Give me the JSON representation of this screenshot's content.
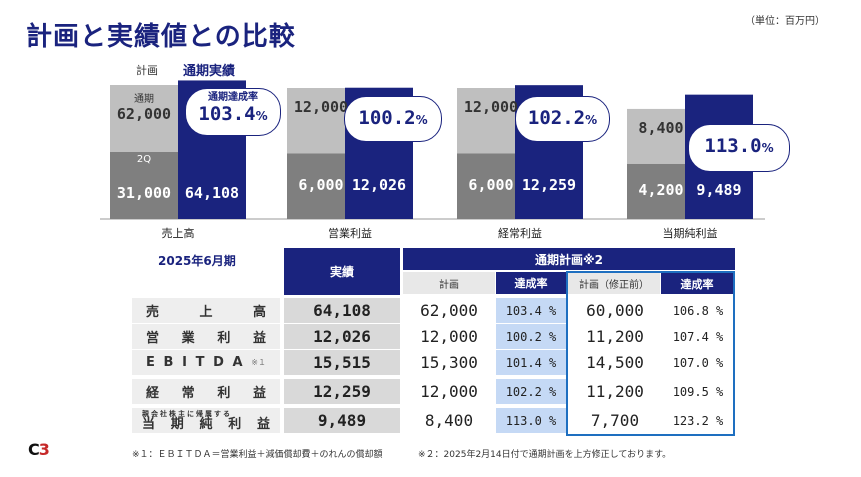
{
  "title": "計画と実績値との比較",
  "unit": "（単位：百万円）",
  "legend": {
    "plan": "計画",
    "actual": "通期実績"
  },
  "chart_data": {
    "type": "bar",
    "categories": [
      "売上高",
      "営業利益",
      "経常利益",
      "当期純利益"
    ],
    "series": [
      {
        "name": "計画",
        "h1": [
          31000,
          6000,
          6000,
          4200
        ],
        "full": [
          62000,
          12000,
          12000,
          8400
        ]
      },
      {
        "name": "通期実績",
        "values": [
          64108,
          12026,
          12259,
          9489
        ]
      }
    ],
    "labels": {
      "h1_text": [
        "31,000",
        "6,000",
        "6,000",
        "4,200"
      ],
      "full_text": [
        "62,000",
        "12,000",
        "12,000",
        "8,400"
      ],
      "actual_text": [
        "64,108",
        "12,026",
        "12,259",
        "9,489"
      ],
      "rates": [
        "103.4",
        "100.2",
        "102.2",
        "113.0"
      ],
      "pct_sign": "%",
      "h1_tag": "2Q",
      "full_tag": "通期",
      "rate_caption": "通期達成率"
    }
  },
  "table": {
    "period": "2025年6月期",
    "headers": {
      "actual": "実績",
      "plan_group": "通期計画※2",
      "plan": "計画",
      "rate": "達成率",
      "plan_before": "計画（修正前）",
      "rate2": "達成率"
    },
    "rows": [
      {
        "label_chars": [
          "売",
          "上",
          "高"
        ],
        "actual": "64,108",
        "plan": "62,000",
        "rate": "103.4 %",
        "plan_before": "60,000",
        "rate2": "106.8 %"
      },
      {
        "label_chars": [
          "営",
          "業",
          "利",
          "益"
        ],
        "actual": "12,026",
        "plan": "12,000",
        "rate": "100.2 %",
        "plan_before": "11,200",
        "rate2": "107.4 %"
      },
      {
        "label_chars": [
          "E",
          "B",
          "I",
          "T",
          "D",
          "A",
          "※１"
        ],
        "actual": "15,515",
        "plan": "15,300",
        "rate": "101.4 %",
        "plan_before": "14,500",
        "rate2": "107.0 %"
      },
      {
        "label_chars": [
          "経",
          "常",
          "利",
          "益"
        ],
        "actual": "12,259",
        "plan": "12,000",
        "rate": "102.2 %",
        "plan_before": "11,200",
        "rate2": "109.5 %"
      },
      {
        "label_top": "親会社株主に帰属する",
        "label_chars": [
          "当",
          "期",
          "純",
          "利",
          "益"
        ],
        "actual": "9,489",
        "plan": "8,400",
        "rate": "113.0 %",
        "plan_before": "7,700",
        "rate2": "123.2 %"
      }
    ]
  },
  "notes": {
    "n1": "※１：ＥＢＩＴＤＡ＝営業利益＋減価償却費＋のれんの償却額",
    "n2": "※２：2025年2月14日付で通期計画を上方修正しております。"
  },
  "colors": {
    "navy": "#1a237e",
    "gray_dark": "#7f7f7f",
    "gray_light": "#bfbfbf",
    "rate_bg": "#c5d9f5",
    "highlight_border": "#1e6fc0"
  },
  "logo": {
    "text": "C",
    "accent": "3"
  }
}
